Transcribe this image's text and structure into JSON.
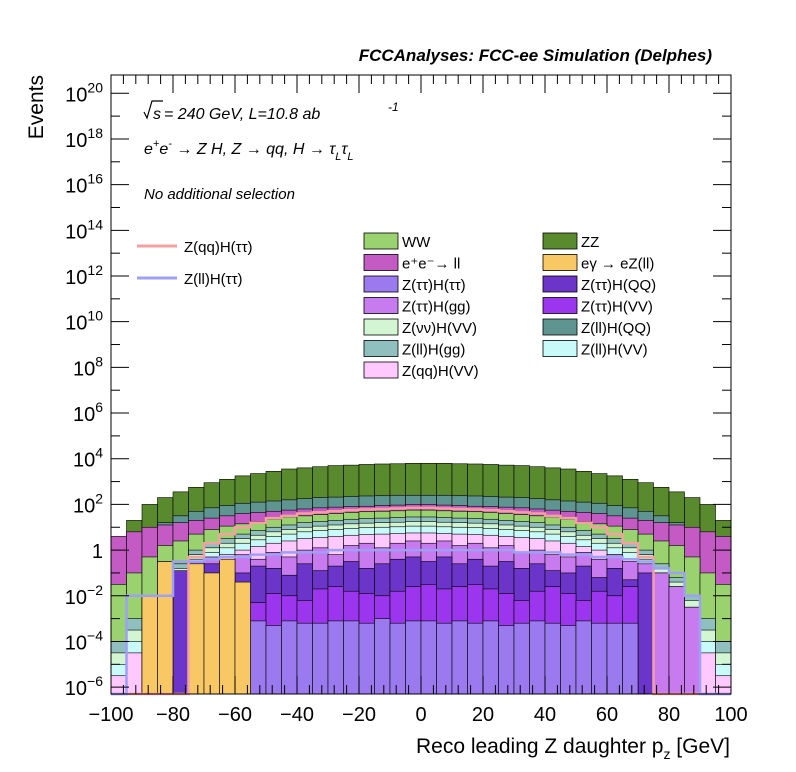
{
  "chart_data": {
    "type": "area",
    "header": "FCCAnalyses: FCC-ee Simulation (Delphes)",
    "energy_text": "= 240 GeV, L=10.8 ab",
    "energy_prefix": "s",
    "lumi_exponent": "-1",
    "process_text": "e⁺e⁻ → Z H, Z → qq, H → τ_L τ_L",
    "selection_text": "No additional selection",
    "xlabel": "Reco leading Z daughter p_z [GeV]",
    "ylabel": "Events",
    "xlim": [
      -100,
      100
    ],
    "ylim_log10": [
      -6.3,
      20.8
    ],
    "yscale": "log",
    "x_ticks": [
      -100,
      -80,
      -60,
      -40,
      -20,
      0,
      20,
      40,
      60,
      80,
      100
    ],
    "y_tick_labels": [
      {
        "exp": -6,
        "label": "10",
        "sup": "-6"
      },
      {
        "exp": -4,
        "label": "10",
        "sup": "-4"
      },
      {
        "exp": -2,
        "label": "10",
        "sup": "-2"
      },
      {
        "exp": 0,
        "label": "1",
        "sup": ""
      },
      {
        "exp": 2,
        "label": "10",
        "sup": "2"
      },
      {
        "exp": 4,
        "label": "10",
        "sup": "4"
      },
      {
        "exp": 6,
        "label": "10",
        "sup": "6"
      },
      {
        "exp": 8,
        "label": "10",
        "sup": "8"
      },
      {
        "exp": 10,
        "label": "10",
        "sup": "10"
      },
      {
        "exp": 12,
        "label": "10",
        "sup": "12"
      },
      {
        "exp": 14,
        "label": "10",
        "sup": "14"
      },
      {
        "exp": 16,
        "label": "10",
        "sup": "16"
      },
      {
        "exp": 18,
        "label": "10",
        "sup": "18"
      },
      {
        "exp": 20,
        "label": "10",
        "sup": "20"
      }
    ],
    "stack_tops_log10": [
      {
        "name": "ZZ",
        "color": "#5a8a2e",
        "top": [
          0.5,
          1.3,
          2.0,
          2.3,
          2.55,
          2.75,
          2.95,
          3.1,
          3.25,
          3.35,
          3.45,
          3.55,
          3.6,
          3.65,
          3.7,
          3.72,
          3.75,
          3.77,
          3.78,
          3.8,
          3.8,
          3.8,
          3.78,
          3.77,
          3.75,
          3.72,
          3.7,
          3.65,
          3.6,
          3.55,
          3.45,
          3.35,
          3.25,
          3.1,
          2.95,
          2.75,
          2.55,
          2.3,
          2.0,
          1.3
        ]
      },
      {
        "name": "Z(ll)H(QQ)",
        "color": "#5f9590",
        "top": [
          -0.2,
          0.2,
          0.8,
          1.2,
          1.5,
          1.7,
          1.85,
          1.95,
          2.05,
          2.1,
          2.15,
          2.2,
          2.25,
          2.3,
          2.32,
          2.35,
          2.37,
          2.38,
          2.4,
          2.4,
          2.4,
          2.4,
          2.38,
          2.37,
          2.35,
          2.32,
          2.3,
          2.25,
          2.2,
          2.15,
          2.1,
          2.05,
          1.95,
          1.85,
          1.7,
          1.5,
          1.2,
          0.8,
          0.2,
          -0.2
        ]
      },
      {
        "name": "e⁺e⁻→ ll",
        "color": "#c45ac4",
        "top": [
          0.6,
          0.8,
          1.0,
          1.1,
          1.2,
          1.3,
          1.4,
          1.5,
          1.6,
          1.65,
          1.7,
          1.75,
          1.8,
          1.85,
          1.88,
          1.9,
          1.92,
          1.95,
          1.97,
          2.0,
          2.0,
          1.97,
          1.95,
          1.92,
          1.9,
          1.88,
          1.85,
          1.8,
          1.75,
          1.7,
          1.65,
          1.6,
          1.5,
          1.4,
          1.3,
          1.2,
          1.1,
          1.0,
          0.8,
          0.6
        ]
      },
      {
        "name": "WW",
        "color": "#9bd270",
        "top": [
          -1.5,
          -1.0,
          -0.3,
          0.2,
          0.4,
          0.7,
          0.9,
          1.05,
          1.15,
          1.25,
          1.35,
          1.45,
          1.5,
          1.55,
          1.6,
          1.65,
          1.68,
          1.7,
          1.72,
          1.75,
          1.75,
          1.72,
          1.7,
          1.68,
          1.65,
          1.6,
          1.55,
          1.5,
          1.45,
          1.35,
          1.25,
          1.15,
          1.05,
          0.9,
          0.7,
          0.4,
          0.2,
          -0.3,
          -1.0,
          -1.5
        ]
      },
      {
        "name": "Z(ll)H(gg)",
        "color": "#8fbfbf",
        "top": [
          -4.0,
          -3.0,
          -2.0,
          -1.2,
          -0.6,
          0.0,
          0.3,
          0.5,
          0.7,
          0.85,
          1.0,
          1.1,
          1.2,
          1.25,
          1.3,
          1.35,
          1.38,
          1.4,
          1.42,
          1.45,
          1.45,
          1.42,
          1.4,
          1.38,
          1.35,
          1.3,
          1.25,
          1.2,
          1.1,
          1.0,
          0.85,
          0.7,
          0.5,
          0.3,
          0.0,
          -0.6,
          -1.2,
          -2.0,
          -3.0,
          -4.0
        ]
      },
      {
        "name": "Z(νν)H(VV)",
        "color": "#d2f5d2",
        "top": [
          -4.5,
          -3.5,
          -2.2,
          -1.4,
          -0.8,
          -0.2,
          0.1,
          0.3,
          0.5,
          0.65,
          0.8,
          0.9,
          1.0,
          1.05,
          1.1,
          1.15,
          1.18,
          1.2,
          1.22,
          1.25,
          1.25,
          1.22,
          1.2,
          1.18,
          1.15,
          1.1,
          1.05,
          1.0,
          0.9,
          0.8,
          0.65,
          0.5,
          0.3,
          0.1,
          -0.2,
          -0.8,
          -1.4,
          -2.2,
          -3.5,
          -4.5
        ]
      },
      {
        "name": "Z(ll)H(VV)",
        "color": "#c8fafa",
        "top": [
          -5.0,
          -4.0,
          -2.5,
          -1.6,
          -1.0,
          -0.4,
          -0.1,
          0.1,
          0.3,
          0.45,
          0.6,
          0.7,
          0.8,
          0.85,
          0.9,
          0.95,
          0.98,
          1.0,
          1.02,
          1.05,
          1.05,
          1.02,
          1.0,
          0.98,
          0.95,
          0.9,
          0.85,
          0.8,
          0.7,
          0.6,
          0.45,
          0.3,
          0.1,
          -0.1,
          -0.4,
          -1.0,
          -1.6,
          -2.5,
          -4.0,
          -5.0
        ]
      },
      {
        "name": "Z(qq)H(VV)",
        "color": "#ffc8ff",
        "top": [
          -5.5,
          -4.5,
          -3.0,
          -2.0,
          -1.3,
          -0.7,
          -0.4,
          -0.2,
          0.0,
          0.15,
          0.3,
          0.4,
          0.5,
          0.55,
          0.6,
          0.65,
          0.68,
          0.7,
          0.72,
          0.75,
          0.75,
          0.72,
          0.7,
          0.68,
          0.65,
          0.6,
          0.55,
          0.5,
          0.4,
          0.3,
          0.15,
          0.0,
          -0.2,
          -0.4,
          -0.7,
          -1.3,
          -2.0,
          -3.0,
          -4.5,
          -5.5
        ]
      },
      {
        "name": "Z(ττ)H(gg)",
        "color": "#c87aef",
        "top": [
          -6.3,
          -6.3,
          -2.3,
          -1.6,
          -1.1,
          -0.5,
          -0.3,
          -0.5,
          -0.2,
          -0.4,
          -0.1,
          -0.3,
          0.0,
          0.1,
          -0.2,
          0.2,
          0.3,
          0.1,
          0.3,
          0.4,
          0.3,
          0.4,
          0.2,
          0.3,
          0.1,
          0.2,
          -0.1,
          0.0,
          -0.2,
          -0.3,
          -0.1,
          -0.4,
          -0.2,
          -0.5,
          -0.6,
          -1.0,
          -1.6,
          -2.5,
          -6.3,
          -6.3
        ]
      },
      {
        "name": "Z(ττ)H(QQ)",
        "color": "#6a35c8",
        "top": [
          -6.3,
          -6.3,
          -6.3,
          -0.5,
          -0.9,
          -1.1,
          -0.6,
          -1.2,
          -1.0,
          -0.7,
          -0.8,
          -1.1,
          -0.6,
          -0.9,
          -0.7,
          -0.5,
          -0.8,
          -0.6,
          -0.4,
          -0.3,
          -0.5,
          -0.3,
          -0.6,
          -0.4,
          -0.7,
          -0.5,
          -0.8,
          -0.6,
          -0.9,
          -1.0,
          -0.7,
          -1.2,
          -0.8,
          -1.3,
          -1.0,
          -6.3,
          -6.3,
          -6.3,
          -6.3,
          -6.3
        ]
      },
      {
        "name": "Z(ττ)H(VV)",
        "color": "#9b35ee",
        "top": [
          -6.3,
          -6.3,
          -6.3,
          -6.3,
          -6.3,
          -2.0,
          -2.2,
          -1.8,
          -2.1,
          -2.3,
          -1.9,
          -2.0,
          -2.2,
          -1.7,
          -1.6,
          -1.8,
          -1.9,
          -2.0,
          -1.8,
          -1.6,
          -1.5,
          -1.7,
          -1.6,
          -1.5,
          -1.7,
          -1.9,
          -2.2,
          -1.8,
          -1.6,
          -1.9,
          -2.2,
          -1.8,
          -2.0,
          -1.6,
          -6.3,
          -6.3,
          -6.3,
          -6.3,
          -6.3,
          -6.3
        ]
      },
      {
        "name": "Z(ττ)H(ττ)",
        "color": "#9b7aef",
        "top": [
          -6.3,
          -6.3,
          -6.3,
          -6.3,
          -6.3,
          -3.2,
          -3.3,
          -3.1,
          -3.2,
          -3.1,
          -3.3,
          -3.1,
          -3.2,
          -3.2,
          -3.1,
          -3.1,
          -3.2,
          -3.0,
          -3.2,
          -3.1,
          -3.1,
          -3.2,
          -3.1,
          -3.2,
          -3.1,
          -3.3,
          -3.2,
          -3.1,
          -3.2,
          -3.3,
          -3.1,
          -3.2,
          -3.2,
          -3.2,
          -6.3,
          -6.3,
          -6.3,
          -6.3,
          -6.3,
          -6.3
        ]
      },
      {
        "name": "eγ → eZ(ll)",
        "color": "#f8c864",
        "top": [
          -6.3,
          -6.3,
          -2.0,
          -0.5,
          -6.3,
          -0.6,
          -1.0,
          -0.4,
          -1.4,
          -6.3,
          -6.3,
          -6.3,
          -6.3,
          -6.3,
          -6.3,
          -6.3,
          -6.3,
          -6.3,
          -6.3,
          -6.3,
          -6.3,
          -6.3,
          -6.3,
          -6.3,
          -6.3,
          -6.3,
          -6.3,
          -6.3,
          -6.3,
          -6.3,
          -6.3,
          -6.3,
          -6.3,
          -6.3,
          -6.3,
          -6.3,
          -6.3,
          -6.3,
          -6.3,
          -6.3
        ]
      }
    ],
    "line_series": [
      {
        "name": "Z(qq)H(ττ)",
        "color": "#f5a0a0",
        "values_log10": [
          -99,
          -99,
          -99,
          -99,
          -99,
          -0.3,
          0.3,
          0.7,
          1.0,
          1.2,
          1.4,
          1.5,
          1.6,
          1.65,
          1.7,
          1.75,
          1.78,
          1.8,
          1.82,
          1.85,
          1.85,
          1.82,
          1.8,
          1.78,
          1.75,
          1.7,
          1.65,
          1.6,
          1.5,
          1.4,
          1.2,
          1.0,
          0.7,
          0.3,
          -0.3,
          -99,
          -99,
          -99,
          -99,
          -99
        ]
      },
      {
        "name": "Z(ll)H(ττ)",
        "color": "#9ea0f5",
        "values_log10": [
          -99,
          -2.0,
          -2.0,
          -2.0,
          -0.5,
          -0.5,
          -0.4,
          -0.3,
          -0.3,
          -0.2,
          -0.2,
          -0.1,
          -0.1,
          -0.1,
          0.0,
          0.0,
          0.0,
          0.0,
          0.0,
          0.0,
          0.0,
          0.0,
          0.0,
          0.0,
          0.0,
          0.0,
          -0.1,
          -0.1,
          -0.1,
          -0.2,
          -0.2,
          -0.3,
          -0.3,
          -0.4,
          -0.5,
          -0.8,
          -1.0,
          -2.0,
          -99,
          -99
        ]
      }
    ],
    "legend_lines": [
      "Z(qq)H(ττ)",
      "Z(ll)H(ττ)"
    ],
    "legend_stack_left": [
      "WW",
      "e⁺e⁻→ ll",
      "Z(ττ)H(ττ)",
      "Z(ττ)H(gg)",
      "Z(νν)H(VV)",
      "Z(ll)H(gg)",
      "Z(qq)H(VV)"
    ],
    "legend_stack_right": [
      "ZZ",
      "eγ → eZ(ll)",
      "Z(ττ)H(QQ)",
      "Z(ττ)H(VV)",
      "Z(ll)H(QQ)",
      "Z(ll)H(VV)"
    ]
  }
}
